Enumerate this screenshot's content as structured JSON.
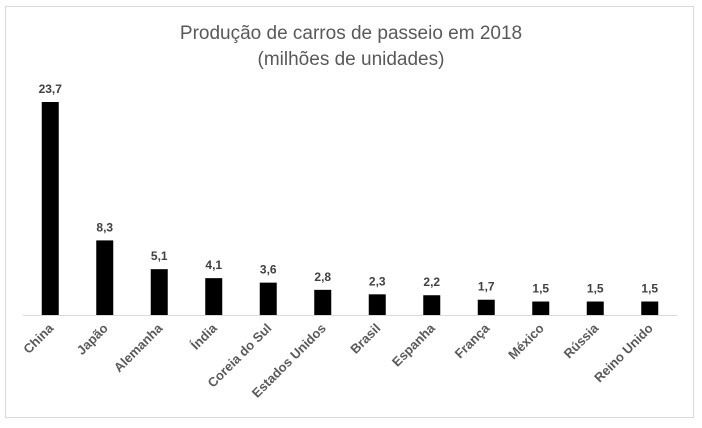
{
  "chart_data": {
    "type": "bar",
    "title": "Produção de carros de passeio em 2018",
    "subtitle": "(milhões de unidades)",
    "categories": [
      "China",
      "Japão",
      "Alemanha",
      "Índia",
      "Coreia do Sul",
      "Estados Unidos",
      "Brasil",
      "Espanha",
      "França",
      "México",
      "Rússia",
      "Reino Unido"
    ],
    "values": [
      23.7,
      8.3,
      5.1,
      4.1,
      3.6,
      2.8,
      2.3,
      2.2,
      1.7,
      1.5,
      1.5,
      1.5
    ],
    "value_labels": [
      "23,7",
      "8,3",
      "5,1",
      "4,1",
      "3,6",
      "2,8",
      "2,3",
      "2,2",
      "1,7",
      "1,5",
      "1,5",
      "1,5"
    ],
    "xlabel": "",
    "ylabel": "",
    "ylim": [
      0,
      23.7
    ],
    "grid": false,
    "legend": "none",
    "bar_color": "#000000"
  }
}
